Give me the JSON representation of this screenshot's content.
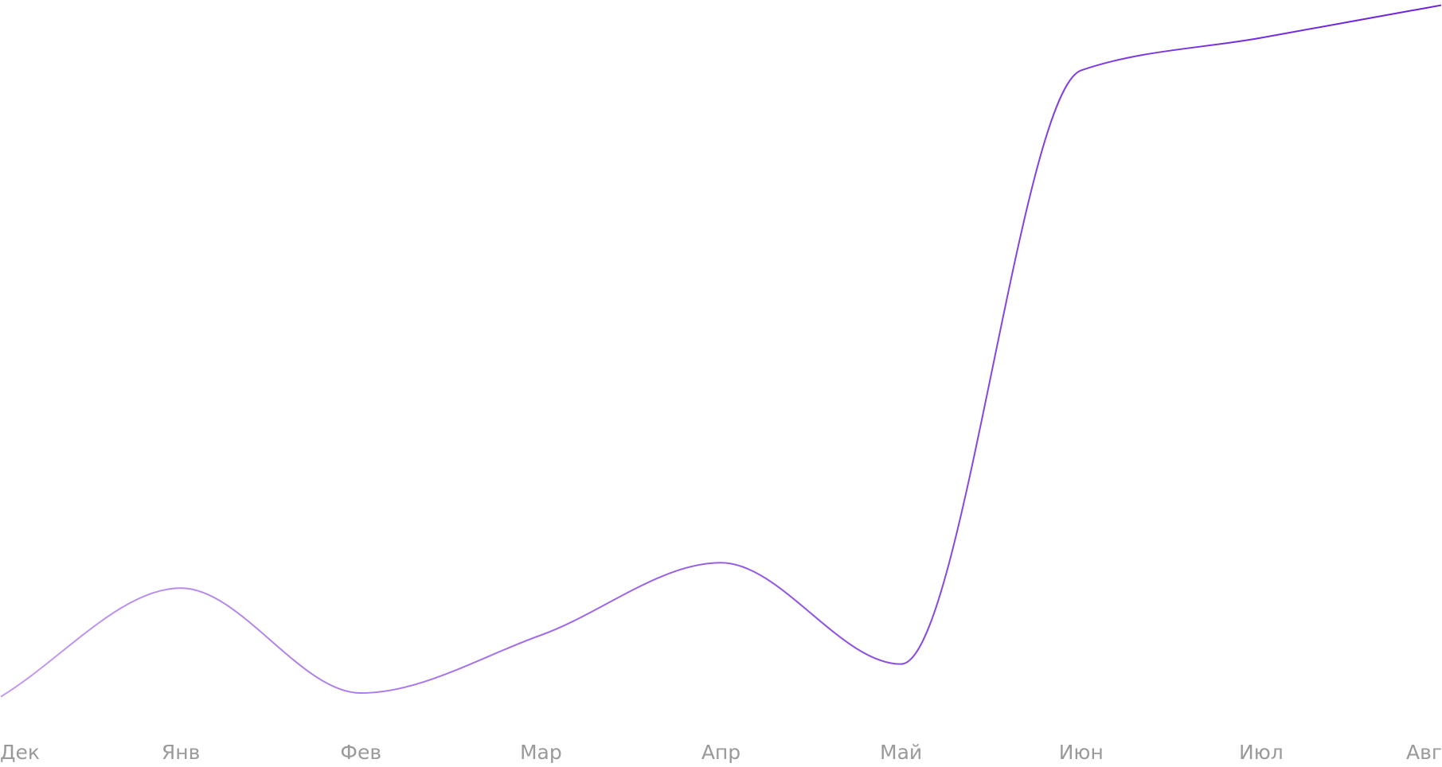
{
  "chart_data": {
    "type": "line",
    "categories": [
      "Дек",
      "Янв",
      "Фев",
      "Мар",
      "Апр",
      "Май",
      "Июн",
      "Июл",
      "Авг"
    ],
    "series": [
      {
        "color": "#7a2ee0",
        "values": [
          4,
          19,
          4.5,
          12.5,
          22.5,
          8.5,
          90.5,
          95,
          99.5
        ]
      }
    ],
    "ylim": [
      0,
      100
    ]
  }
}
